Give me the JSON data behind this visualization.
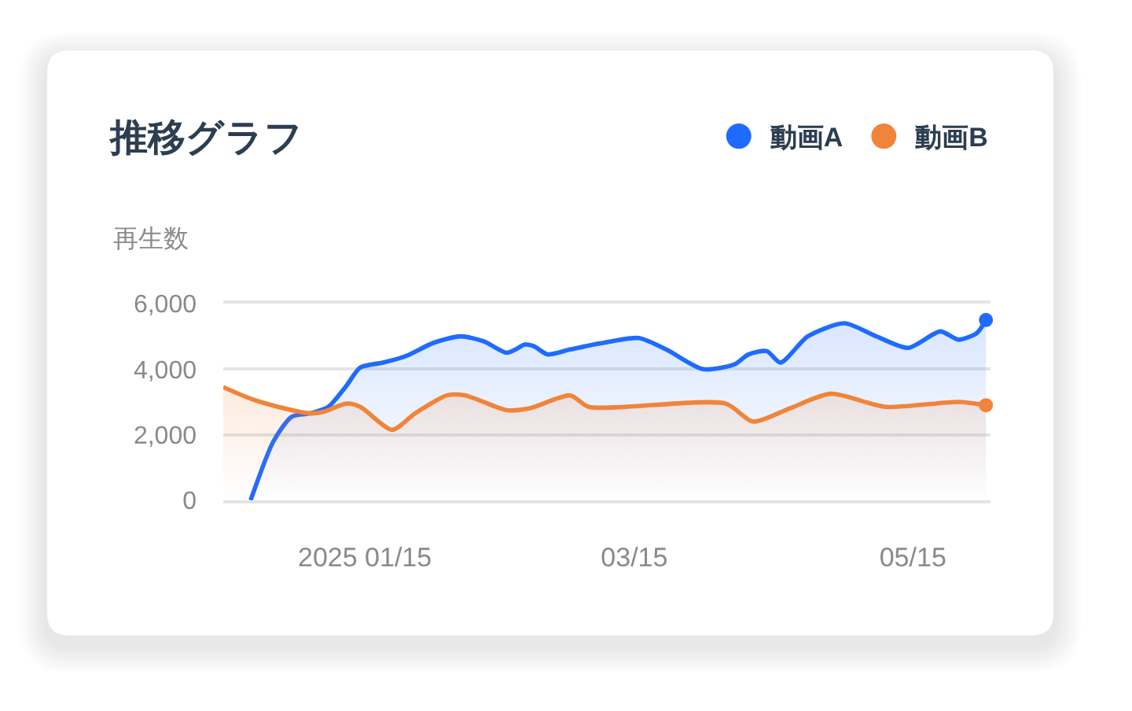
{
  "chart_data": {
    "type": "area",
    "title": "推移グラフ",
    "ylabel": "再生数",
    "xlim": [
      "2024-12-15",
      "2025-06-01"
    ],
    "xticks": [
      {
        "value": "2025-01-15",
        "label": "2025 01/15"
      },
      {
        "value": "2025-03-15",
        "label": "03/15"
      },
      {
        "value": "2025-05-15",
        "label": "05/15"
      }
    ],
    "ylim": [
      0,
      6000
    ],
    "yticks": [
      0,
      {
        "value": 2000,
        "label": "2,000"
      },
      {
        "value": 4000,
        "label": "4,000"
      },
      {
        "value": 6000,
        "label": "6,000"
      }
    ],
    "grid": "y",
    "legend": "top right",
    "series": [
      {
        "name": "動画A",
        "color": "#1f6bff",
        "x": [
          "2024-12-21",
          "2024-12-26",
          "2024-12-30",
          "2025-01-03",
          "2025-01-07",
          "2025-01-11",
          "2025-01-14",
          "2025-01-19",
          "2025-01-24",
          "2025-01-30",
          "2025-02-05",
          "2025-02-10",
          "2025-02-15",
          "2025-02-17",
          "2025-02-19",
          "2025-02-21",
          "2025-02-24",
          "2025-03-01",
          "2025-03-10",
          "2025-03-16",
          "2025-03-22",
          "2025-03-30",
          "2025-04-06",
          "2025-04-09",
          "2025-04-13",
          "2025-04-16",
          "2025-04-22",
          "2025-04-30",
          "2025-05-07",
          "2025-05-14",
          "2025-05-21",
          "2025-05-25",
          "2025-05-29",
          "2025-05-31"
        ],
        "values": [
          0,
          1800,
          2550,
          2650,
          2850,
          3500,
          4050,
          4200,
          4400,
          4800,
          5000,
          4850,
          4500,
          4600,
          4750,
          4700,
          4450,
          4600,
          4850,
          4950,
          4600,
          4000,
          4150,
          4450,
          4550,
          4200,
          5000,
          5400,
          5000,
          4650,
          5150,
          4900,
          5100,
          5500
        ]
      },
      {
        "name": "動画B",
        "color": "#f0843a",
        "x": [
          "2024-12-15",
          "2024-12-21",
          "2024-12-27",
          "2025-01-03",
          "2025-01-06",
          "2025-01-11",
          "2025-01-14",
          "2025-01-21",
          "2025-01-26",
          "2025-02-02",
          "2025-02-06",
          "2025-02-15",
          "2025-02-20",
          "2025-03-01",
          "2025-03-05",
          "2025-04-04",
          "2025-04-10",
          "2025-04-18",
          "2025-04-27",
          "2025-05-09",
          "2025-05-25",
          "2025-05-31"
        ],
        "values": [
          3450,
          3100,
          2850,
          2650,
          2700,
          2950,
          2850,
          2150,
          2650,
          3200,
          3200,
          2750,
          2800,
          3200,
          2850,
          2950,
          2400,
          2800,
          3250,
          2850,
          3000,
          2900
        ]
      },
      {
        "type": "scatter",
        "color": "#1f6bff",
        "x": [
          "2025-05-31"
        ],
        "values": [
          5500
        ]
      },
      {
        "type": "scatter",
        "color": "#f0843a",
        "x": [
          "2025-05-31"
        ],
        "values": [
          2900
        ]
      }
    ]
  }
}
